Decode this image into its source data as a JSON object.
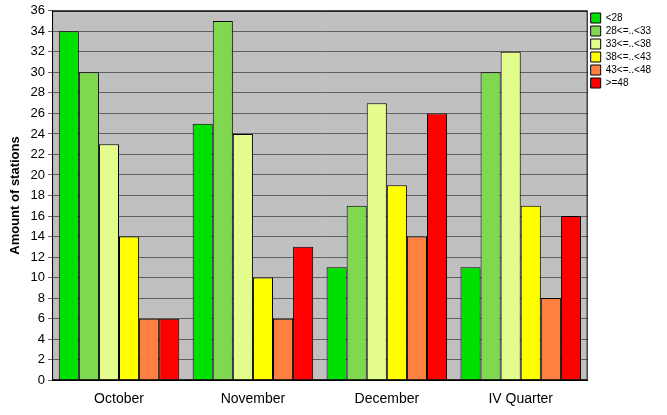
{
  "chart_data": {
    "type": "bar",
    "y_label": "Amount of stations",
    "categories": [
      "October",
      "November",
      "December",
      "IV Quarter"
    ],
    "series": [
      {
        "name": "<28",
        "color": "#00e000",
        "values": [
          34,
          25,
          11,
          11
        ]
      },
      {
        "name": "28<=..<33",
        "color": "#80d850",
        "values": [
          30,
          35,
          17,
          30
        ]
      },
      {
        "name": "33<=..<38",
        "color": "#e4fc8c",
        "values": [
          23,
          24,
          27,
          32
        ]
      },
      {
        "name": "38<=..<43",
        "color": "#ffff00",
        "values": [
          14,
          10,
          19,
          17
        ]
      },
      {
        "name": "43<=..<48",
        "color": "#ff8040",
        "values": [
          6,
          6,
          14,
          8
        ]
      },
      {
        "name": ">=48",
        "color": "#ff0000",
        "values": [
          6,
          13,
          26,
          16
        ]
      }
    ],
    "ylim": [
      0,
      36
    ],
    "yticks": [
      0,
      2,
      4,
      6,
      8,
      10,
      12,
      14,
      16,
      18,
      20,
      22,
      24,
      26,
      28,
      30,
      32,
      34,
      36
    ],
    "grid": true,
    "legend": "upper right"
  }
}
